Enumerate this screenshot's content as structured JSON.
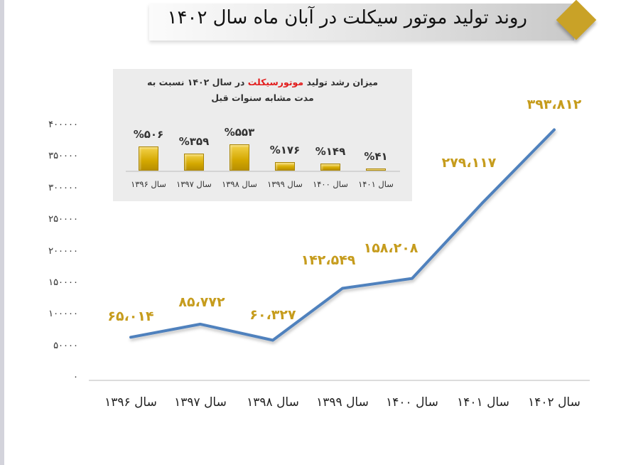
{
  "title": "روند تولید موتور سیکلت در آبان ماه سال ۱۴۰۲",
  "colors": {
    "accent_gold": "#c9a227",
    "line": "#4f81bd",
    "label_gold": "#c69c1d",
    "highlight_red": "#e21d1d"
  },
  "inset": {
    "title_part1": "میزان رشد تولید ",
    "title_highlight": "موتورسیکلت",
    "title_part2": " در سال ۱۴۰۲ نسبت به",
    "title_line2": "مدت مشابه سنوات قبل"
  },
  "chart_data": [
    {
      "type": "line",
      "title": "روند تولید موتور سیکلت در آبان ماه سال ۱۴۰۲",
      "categories": [
        "سال ۱۳۹۶",
        "سال ۱۳۹۷",
        "سال ۱۳۹۸",
        "سال ۱۳۹۹",
        "سال ۱۴۰۰",
        "سال ۱۴۰۱",
        "سال ۱۴۰۲"
      ],
      "values": [
        65014,
        85772,
        60327,
        142549,
        158208,
        279117,
        393812
      ],
      "data_labels": [
        "۶۵،۰۱۴",
        "۸۵،۷۷۲",
        "۶۰،۳۲۷",
        "۱۴۲،۵۴۹",
        "۱۵۸،۲۰۸",
        "۲۷۹،۱۱۷",
        "۳۹۳،۸۱۲"
      ],
      "ylim": [
        0,
        400000
      ],
      "yticks": [
        "۴۰۰۰۰۰",
        "۳۵۰۰۰۰",
        "۳۰۰۰۰۰",
        "۲۵۰۰۰۰",
        "۲۰۰۰۰۰",
        "۱۵۰۰۰۰",
        "۱۰۰۰۰۰",
        "۵۰۰۰۰",
        "۰"
      ],
      "grid": false,
      "xlabel": "",
      "ylabel": ""
    },
    {
      "type": "bar",
      "title": "میزان رشد تولید موتورسیکلت در سال ۱۴۰۲ نسبت به مدت مشابه سنوات قبل",
      "categories": [
        "سال ۱۳۹۶",
        "سال ۱۳۹۷",
        "سال ۱۳۹۸",
        "سال ۱۳۹۹",
        "سال ۱۴۰۰",
        "سال ۱۴۰۱"
      ],
      "values": [
        506,
        359,
        553,
        176,
        149,
        41
      ],
      "data_labels": [
        "%۵۰۶",
        "%۳۵۹",
        "%۵۵۳",
        "%۱۷۶",
        "%۱۴۹",
        "%۴۱"
      ],
      "unit": "%"
    }
  ]
}
